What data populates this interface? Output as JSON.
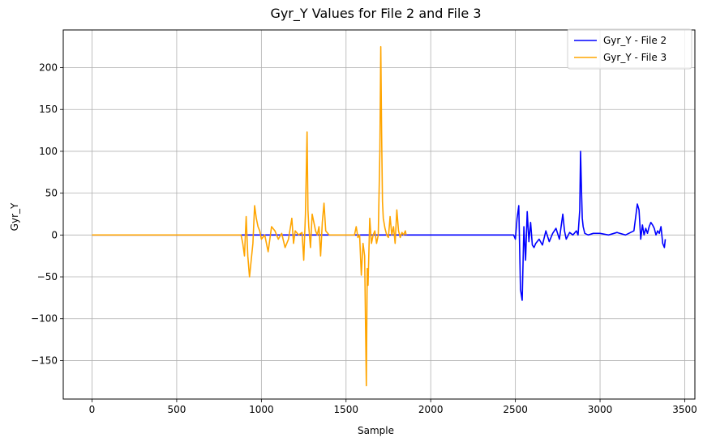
{
  "chart_data": {
    "type": "line",
    "title": "Gyr_Y Values for File 2 and File 3",
    "xlabel": "Sample",
    "ylabel": "Gyr_Y",
    "xlim": [
      -170,
      3560
    ],
    "ylim": [
      -196,
      245
    ],
    "xticks": [
      0,
      500,
      1000,
      1500,
      2000,
      2500,
      3000,
      3500
    ],
    "yticks": [
      -150,
      -100,
      -50,
      0,
      50,
      100,
      150,
      200
    ],
    "ytick_labels": [
      "−150",
      "−100",
      "−50",
      "0",
      "50",
      "100",
      "150",
      "200"
    ],
    "grid": true,
    "legend_position": "top-right",
    "series": [
      {
        "name": "Gyr_Y - File 2",
        "color": "#0000ff",
        "x": [
          0,
          500,
          1000,
          1500,
          2000,
          2490,
          2500,
          2510,
          2520,
          2530,
          2540,
          2550,
          2560,
          2570,
          2580,
          2590,
          2600,
          2610,
          2620,
          2640,
          2660,
          2680,
          2700,
          2720,
          2740,
          2760,
          2780,
          2790,
          2800,
          2820,
          2840,
          2860,
          2870,
          2880,
          2885,
          2890,
          2895,
          2900,
          2910,
          2930,
          2960,
          3000,
          3050,
          3100,
          3150,
          3200,
          3220,
          3230,
          3240,
          3250,
          3260,
          3270,
          3280,
          3290,
          3300,
          3310,
          3320,
          3330,
          3340,
          3350,
          3360,
          3370,
          3380,
          3385
        ],
        "y": [
          0,
          0,
          0,
          0,
          0,
          0,
          -5,
          20,
          35,
          -65,
          -78,
          10,
          -30,
          28,
          -8,
          15,
          -12,
          -15,
          -10,
          -5,
          -12,
          5,
          -8,
          2,
          8,
          -5,
          25,
          5,
          -5,
          3,
          0,
          5,
          0,
          30,
          100,
          55,
          20,
          10,
          2,
          0,
          2,
          2,
          0,
          3,
          0,
          5,
          37,
          30,
          -5,
          12,
          0,
          8,
          2,
          10,
          15,
          12,
          8,
          0,
          5,
          2,
          10,
          -10,
          -15,
          -5
        ]
      },
      {
        "name": "Gyr_Y - File 3",
        "color": "#ffa500",
        "x": [
          0,
          100,
          200,
          300,
          400,
          500,
          600,
          700,
          800,
          880,
          890,
          900,
          910,
          920,
          930,
          940,
          950,
          960,
          970,
          980,
          990,
          1000,
          1020,
          1040,
          1060,
          1080,
          1100,
          1120,
          1140,
          1160,
          1180,
          1190,
          1200,
          1220,
          1240,
          1250,
          1260,
          1270,
          1275,
          1280,
          1290,
          1300,
          1310,
          1320,
          1330,
          1340,
          1350,
          1360,
          1370,
          1380,
          1400,
          1450,
          1500,
          1550,
          1560,
          1570,
          1580,
          1590,
          1600,
          1610,
          1620,
          1625,
          1630,
          1640,
          1650,
          1660,
          1670,
          1680,
          1690,
          1700,
          1705,
          1710,
          1715,
          1720,
          1730,
          1740,
          1750,
          1760,
          1770,
          1780,
          1790,
          1800,
          1810,
          1820,
          1830,
          1840,
          1850,
          1855
        ],
        "y": [
          0,
          0,
          0,
          0,
          0,
          0,
          0,
          0,
          0,
          0,
          -10,
          -25,
          22,
          -25,
          -50,
          -30,
          -10,
          35,
          20,
          10,
          5,
          -5,
          0,
          -20,
          10,
          5,
          -5,
          2,
          -15,
          -5,
          20,
          -10,
          5,
          0,
          3,
          -30,
          25,
          123,
          30,
          10,
          -15,
          25,
          15,
          5,
          0,
          10,
          -25,
          15,
          38,
          5,
          0,
          0,
          0,
          0,
          10,
          -3,
          0,
          -48,
          -10,
          -25,
          -180,
          -40,
          -60,
          20,
          -10,
          0,
          5,
          -10,
          0,
          100,
          225,
          125,
          40,
          20,
          8,
          0,
          -3,
          22,
          0,
          10,
          -10,
          30,
          5,
          -3,
          3,
          0,
          5,
          0
        ]
      }
    ]
  }
}
